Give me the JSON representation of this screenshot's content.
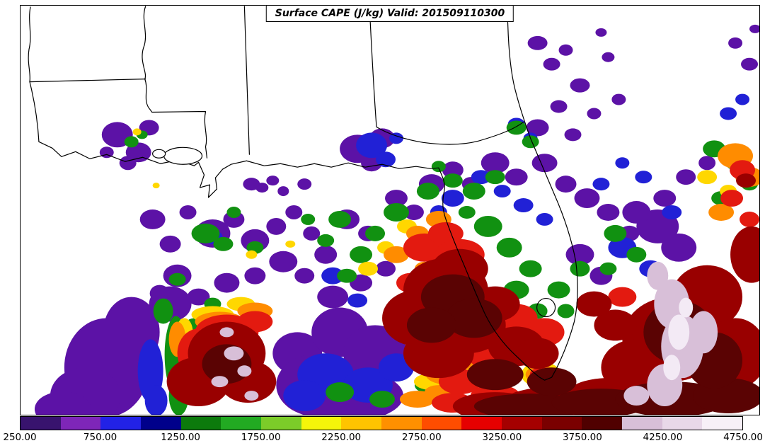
{
  "title": "Surface CAPE (J/kg) Valid: 201509110300",
  "colorbar": {
    "min": 250,
    "max": 4750,
    "interval": 250,
    "orientation": "horizontal",
    "position": "bottom",
    "tick_labels": [
      "250.00",
      "750.00",
      "1250.00",
      "1750.00",
      "2250.00",
      "2750.00",
      "3250.00",
      "3750.00",
      "4250.00",
      "4750.00"
    ],
    "segment_colors": [
      "#38136e",
      "#7e26b8",
      "#2222e6",
      "#00008b",
      "#0c7a0c",
      "#22aa22",
      "#7ccc29",
      "#f5f50a",
      "#ffc400",
      "#ff9000",
      "#ff4d00",
      "#e60000",
      "#a50000",
      "#7a0000",
      "#500000",
      "#d8bfd8",
      "#e8d8e8",
      "#f7f0f7"
    ]
  },
  "chart_data": {
    "type": "heatmap",
    "title": "Surface CAPE (J/kg) Valid: 201509110300",
    "variable": "Surface CAPE",
    "units": "J/kg",
    "valid_time": "201509110300",
    "legend_position": "bottom",
    "colorbar_min": 250,
    "colorbar_max": 4750,
    "colorbar_interval": 250,
    "tick_values": [
      250,
      750,
      1250,
      1750,
      2250,
      2750,
      3250,
      3750,
      4250,
      4750
    ],
    "tick_labels": [
      "250.00",
      "750.00",
      "1250.00",
      "1750.00",
      "2250.00",
      "2750.00",
      "3250.00",
      "3750.00",
      "4250.00",
      "4750.00"
    ],
    "segment_colors": [
      "#38136e",
      "#7e26b8",
      "#2222e6",
      "#00008b",
      "#0c7a0c",
      "#22aa22",
      "#7ccc29",
      "#f5f50a",
      "#ffc400",
      "#ff9000",
      "#ff4d00",
      "#e60000",
      "#a50000",
      "#7a0000",
      "#500000",
      "#d8bfd8",
      "#e8d8e8",
      "#f7f0f7"
    ]
  }
}
